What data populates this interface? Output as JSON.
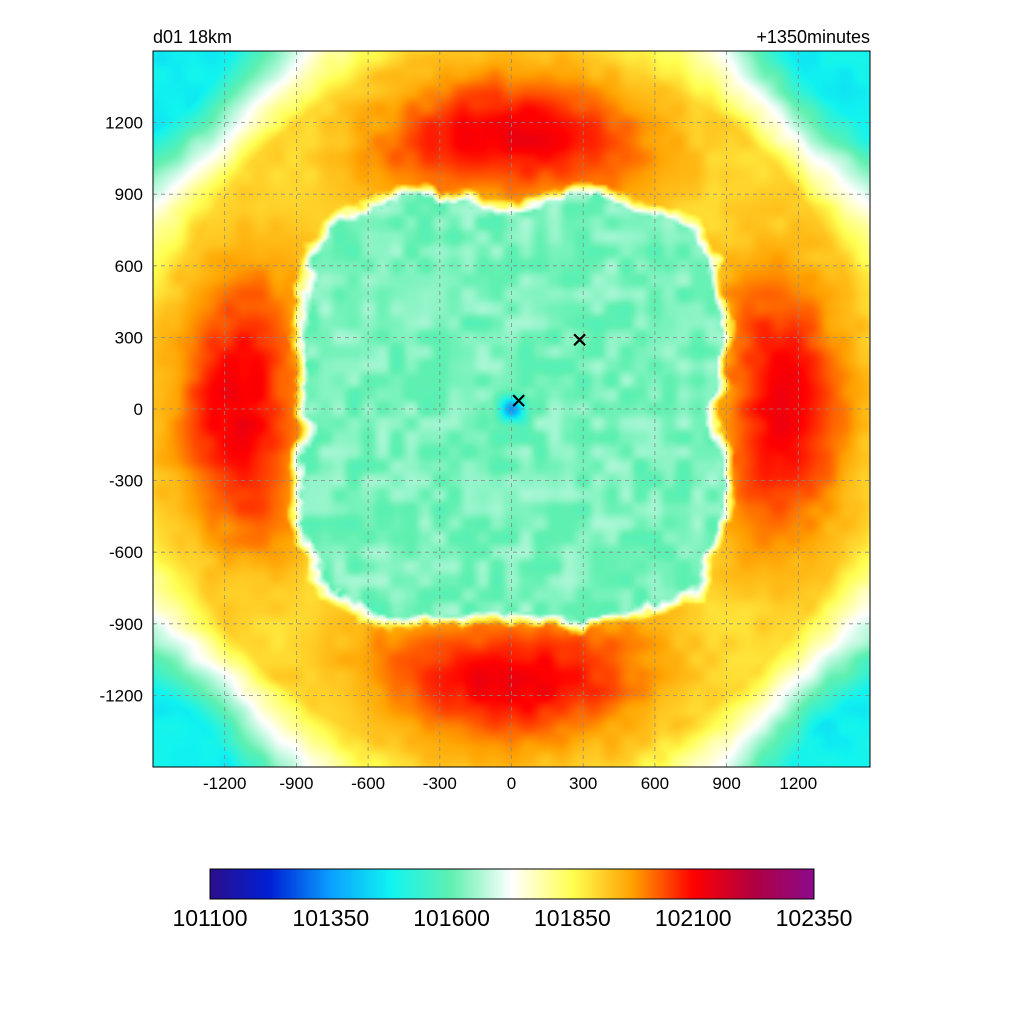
{
  "chart_data": {
    "type": "heatmap",
    "title_left": "d01 18km",
    "title_right": "+1350minutes",
    "xlabel": "",
    "ylabel": "",
    "xlim": [
      -1500,
      1500
    ],
    "ylim": [
      -1500,
      1500
    ],
    "x_ticks": [
      -1200,
      -900,
      -600,
      -300,
      0,
      300,
      600,
      900,
      1200
    ],
    "y_ticks": [
      1200,
      900,
      600,
      300,
      0,
      -300,
      -600,
      -900,
      -1200
    ],
    "grid": true,
    "colorbar": {
      "min": 101100,
      "max": 102350,
      "tick_values": [
        101100,
        101350,
        101600,
        101850,
        102100,
        102350
      ],
      "colors": [
        "#2a0e8c",
        "#0020d6",
        "#0aa0ff",
        "#10f4f0",
        "#60f0b0",
        "#ffffff",
        "#ffff50",
        "#ffa000",
        "#ff0000",
        "#b00040",
        "#8c0a8c"
      ],
      "placement": "bottom"
    },
    "field": {
      "description_levels": {
        "center_low": 101300,
        "inner_region": 101620,
        "ring": 101900,
        "max_axis_lobes": 102120,
        "corners": 101470
      }
    },
    "markers": [
      {
        "symbol": "x",
        "x": 30,
        "y": 35
      },
      {
        "symbol": "x",
        "x": 285,
        "y": 290
      }
    ]
  }
}
